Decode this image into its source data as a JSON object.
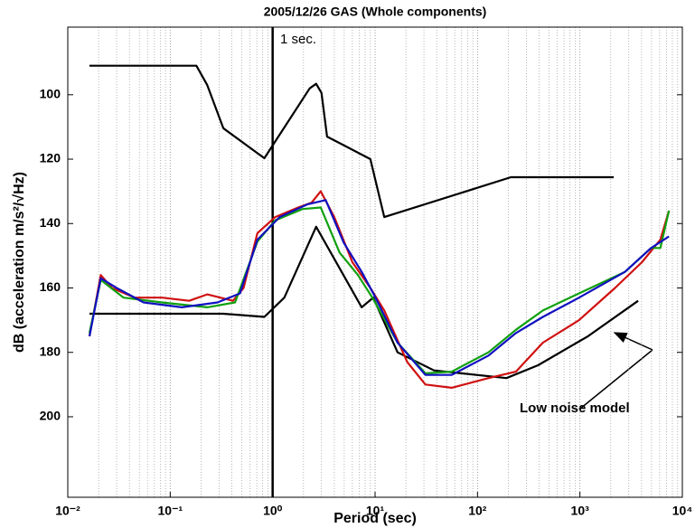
{
  "chart_data": {
    "type": "line",
    "title": "2005/12/26  GAS (Whole components)",
    "x_label": "Period (sec)",
    "y_label": "dB (acceleration m/s²/√Hz)",
    "xscale": "log",
    "xlim": [
      0.01,
      10000
    ],
    "xticks": [
      {
        "value": 0.01,
        "label": "10⁻²"
      },
      {
        "value": 0.1,
        "label": "10⁻¹"
      },
      {
        "value": 1,
        "label": "10⁰"
      },
      {
        "value": 10,
        "label": "10¹"
      },
      {
        "value": 100,
        "label": "10²"
      },
      {
        "value": 1000,
        "label": "10³"
      },
      {
        "value": 10000,
        "label": "10⁴"
      }
    ],
    "ylim": [
      225,
      79
    ],
    "yticks": [
      100,
      120,
      140,
      160,
      180,
      200
    ],
    "grid": true,
    "vline": 1,
    "vline_label": "1 sec.",
    "annotation": "Low noise model",
    "series": [
      {
        "color": "#000000",
        "x": [
          0.0163,
          0.18,
          0.23,
          0.33,
          0.83,
          2.3,
          2.66,
          3.0,
          3.4,
          9,
          12.3,
          212,
          2140
        ],
        "values": [
          91,
          91,
          97,
          110.4,
          119.7,
          98,
          96.6,
          99.4,
          113,
          120,
          138,
          125.6,
          125.6
        ]
      },
      {
        "color": "#000000",
        "x": [
          0.0163,
          0.33,
          0.83,
          1.3,
          2.66,
          7.4,
          9.6,
          16.6,
          37.6,
          192,
          390,
          1200,
          3700
        ],
        "values": [
          168,
          168,
          169,
          163,
          141,
          166,
          163,
          180,
          185.6,
          188,
          184,
          175,
          164
        ]
      },
      {
        "color": "#d01010",
        "x": [
          0.0163,
          0.021,
          0.027,
          0.045,
          0.083,
          0.153,
          0.23,
          0.41,
          0.52,
          0.71,
          1.06,
          1.77,
          2.4,
          2.95,
          4.0,
          6.0,
          9.0,
          12.3,
          20.6,
          31,
          56,
          128,
          237,
          435,
          980,
          2200,
          4030,
          6100,
          7400
        ],
        "values": [
          175,
          156,
          160,
          163,
          163,
          164,
          162,
          164,
          160,
          143,
          138,
          135,
          133.5,
          130,
          138,
          152,
          160,
          167,
          183,
          190,
          191,
          188,
          186,
          177,
          170,
          160,
          152,
          145,
          136
        ]
      },
      {
        "color": "#10a010",
        "x": [
          0.0163,
          0.021,
          0.035,
          0.083,
          0.23,
          0.43,
          0.71,
          1.06,
          1.96,
          2.95,
          4.5,
          6.8,
          9.4,
          16.6,
          31,
          56,
          128,
          237,
          435,
          980,
          2750,
          4950,
          6100,
          7400
        ],
        "values": [
          174,
          157.5,
          163,
          164.5,
          166,
          164.5,
          145.6,
          139,
          135.5,
          135,
          149,
          156,
          163,
          177,
          186.5,
          186,
          180,
          173,
          167,
          161.7,
          155,
          147.6,
          147.6,
          136
        ]
      },
      {
        "color": "#1010c0",
        "x": [
          0.0163,
          0.021,
          0.03,
          0.055,
          0.13,
          0.29,
          0.48,
          0.71,
          1.17,
          2.2,
          3.3,
          4.95,
          7.4,
          10.1,
          16.6,
          31,
          56,
          128,
          237,
          435,
          980,
          2750,
          4950,
          7400
        ],
        "values": [
          175,
          157,
          160,
          164.5,
          166,
          164.5,
          161.7,
          145,
          138,
          134,
          132.7,
          146,
          155,
          163,
          177,
          187,
          187,
          181,
          174,
          169,
          163,
          155,
          147.6,
          144
        ]
      }
    ]
  }
}
